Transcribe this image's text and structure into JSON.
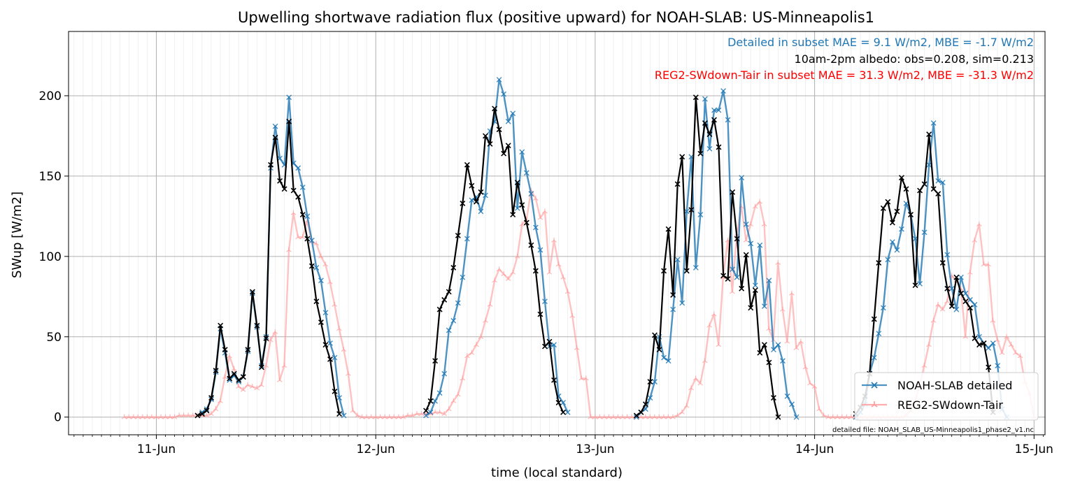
{
  "chart_data": {
    "type": "line",
    "title": "Upwelling shortwave radiation flux (positive upward) for NOAH-SLAB: US-Minneapolis1",
    "xlabel": "time (local standard)",
    "ylabel": "SWup [W/m2]",
    "x_unit": "day of June (decimal, local standard time)",
    "xlim": [
      10.6,
      15.05
    ],
    "ylim": [
      -11,
      240
    ],
    "x_ticks": [
      {
        "value": 11,
        "label": "11-Jun"
      },
      {
        "value": 12,
        "label": "12-Jun"
      },
      {
        "value": 13,
        "label": "13-Jun"
      },
      {
        "value": 14,
        "label": "14-Jun"
      },
      {
        "value": 15,
        "label": "15-Jun"
      }
    ],
    "y_ticks": [
      0,
      50,
      100,
      150,
      200
    ],
    "grid": true,
    "legend_position": "bottom-right",
    "annotations": {
      "line1": {
        "text": "Detailed in subset MAE = 9.1 W/m2, MBE = -1.7 W/m2",
        "color": "#1f77b4"
      },
      "line2": {
        "text": "10am-2pm albedo: obs=0.208, sim=0.213",
        "color": "#000000"
      },
      "line3": {
        "text": "REG2-SWdown-Tair in subset MAE = 31.3 W/m2, MBE = -31.3 W/m2",
        "color": "#ff0000"
      },
      "footnote": "detailed file: NOAH_SLAB_US-Minneapolis1_phase2_v1.nc"
    },
    "series": [
      {
        "name": "NOAH-SLAB detailed",
        "color": "#1f77b4",
        "marker": "x",
        "segments": [
          {
            "x0": 11.188,
            "values": [
              1,
              3,
              5,
              11,
              28,
              55,
              40,
              23,
              26,
              22,
              25,
              41,
              77,
              56,
              32,
              50,
              155,
              181,
              161,
              157,
              199,
              158,
              155,
              143,
              125,
              110,
              93,
              85,
              65,
              46,
              37,
              12,
              1
            ]
          },
          {
            "x0": 12.229,
            "values": [
              1,
              3,
              10,
              15,
              27,
              54,
              60,
              71,
              87,
              111,
              135,
              137,
              128,
              138,
              178,
              184,
              210,
              201,
              184,
              189,
              130,
              165,
              152,
              139,
              118,
              104,
              72,
              44,
              45,
              13,
              9,
              3
            ]
          },
          {
            "x0": 13.188,
            "values": [
              0,
              3,
              5,
              12,
              22,
              50,
              37,
              35,
              67,
              98,
              71,
              128,
              162,
              93,
              126,
              198,
              167,
              191,
              191,
              203,
              185,
              92,
              87,
              149,
              120,
              108,
              82,
              107,
              69,
              85,
              42,
              45,
              35,
              13,
              8,
              0
            ]
          },
          {
            "x0": 14.188,
            "values": [
              0,
              3,
              8,
              27,
              37,
              52,
              68,
              98,
              109,
              104,
              117,
              133,
              126,
              111,
              83,
              115,
              157,
              183,
              147,
              146,
              101,
              80,
              67,
              87,
              77,
              73,
              70,
              50,
              46,
              43,
              46,
              32,
              5,
              0
            ]
          }
        ]
      },
      {
        "name": "REG2-SWdown-Tair",
        "color": "#ff9999",
        "marker": "tri",
        "segments": [
          {
            "x0": 10.854,
            "values": [
              0,
              0,
              0,
              0,
              0,
              0,
              0,
              0,
              0,
              0,
              0,
              0,
              1,
              1,
              1,
              1,
              1,
              1,
              1,
              2,
              5,
              10,
              25,
              38,
              30,
              19,
              17,
              20,
              19,
              18,
              20,
              32,
              48,
              53,
              23,
              32,
              104,
              127,
              112,
              112,
              122,
              109,
              108,
              100,
              95,
              84,
              70,
              55,
              42,
              27,
              4,
              1,
              0,
              0,
              0,
              0,
              0,
              0,
              0,
              0,
              0,
              0,
              1,
              1,
              2,
              2,
              2,
              2,
              3,
              3,
              2,
              5,
              10,
              14,
              24,
              38,
              40,
              45,
              50,
              60,
              70,
              85,
              92,
              89,
              86,
              90,
              100,
              120,
              123,
              141,
              136,
              124,
              128,
              90,
              110,
              95,
              87,
              78,
              63,
              43,
              24,
              24,
              0,
              0,
              0,
              0,
              0,
              0,
              0,
              0,
              0,
              0,
              0,
              0,
              0,
              0,
              0,
              0,
              0,
              0,
              0,
              1,
              3,
              7,
              18,
              24,
              21,
              35,
              57,
              64,
              45,
              87,
              110,
              78,
              114,
              131,
              110,
              120,
              131,
              134,
              120,
              55,
              48,
              96,
              67,
              47,
              77,
              43,
              47,
              31,
              21,
              19,
              5,
              1,
              0,
              0,
              0,
              0,
              0,
              0,
              0,
              0,
              0,
              0,
              0,
              0,
              0,
              0,
              0,
              0,
              0,
              1,
              4,
              10,
              20,
              32,
              45,
              60,
              70,
              67,
              72,
              88,
              85,
              80,
              50,
              90,
              110,
              120,
              95,
              95,
              60,
              48,
              40,
              50,
              45,
              40,
              38,
              22,
              15,
              0
            ]
          }
        ]
      },
      {
        "name": "",
        "color": "#000000",
        "marker": "x",
        "segments": [
          {
            "x0": 11.188,
            "values": [
              1,
              2,
              4,
              12,
              29,
              57,
              42,
              24,
              27,
              23,
              25,
              42,
              78,
              57,
              31,
              49,
              157,
              174,
              147,
              142,
              184,
              141,
              137,
              126,
              111,
              94,
              72,
              59,
              45,
              36,
              16,
              2
            ]
          },
          {
            "x0": 12.229,
            "values": [
              4,
              10,
              35,
              67,
              73,
              78,
              93,
              113,
              133,
              157,
              144,
              134,
              140,
              175,
              170,
              192,
              179,
              164,
              169,
              126,
              146,
              132,
              121,
              107,
              91,
              64,
              44,
              47,
              23,
              9,
              3
            ]
          },
          {
            "x0": 13.188,
            "values": [
              1,
              3,
              8,
              22,
              51,
              42,
              91,
              117,
              76,
              145,
              162,
              91,
              129,
              199,
              164,
              183,
              176,
              185,
              168,
              88,
              86,
              140,
              111,
              80,
              101,
              68,
              79,
              40,
              45,
              34,
              12,
              0
            ]
          },
          {
            "x0": 14.188,
            "values": [
              2,
              6,
              13,
              27,
              61,
              96,
              130,
              134,
              121,
              128,
              149,
              142,
              126,
              82,
              141,
              145,
              176,
              142,
              139,
              96,
              80,
              69,
              87,
              77,
              72,
              68,
              49,
              45,
              46,
              31,
              3
            ]
          }
        ]
      }
    ],
    "legend": [
      {
        "label": "NOAH-SLAB detailed",
        "color": "#1f77b4"
      },
      {
        "label": "REG2-SWdown-Tair",
        "color": "#ff9999"
      }
    ]
  }
}
